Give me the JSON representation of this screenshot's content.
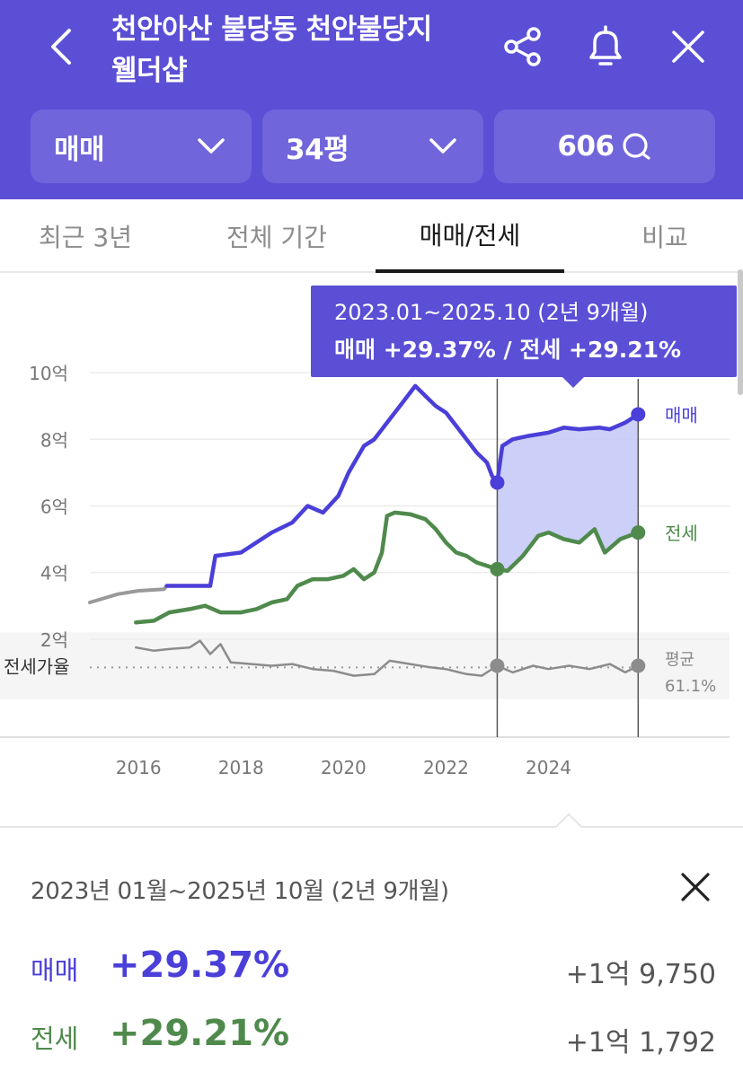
{
  "header": {
    "title_line1": "천안아산 불당동 천안불당지",
    "title_line2": "웰더샵",
    "back_icon": "chevron-left-icon",
    "share_icon": "share-icon",
    "bell_icon": "bell-icon",
    "close_icon": "close-icon",
    "filters": {
      "trade_type": "매매",
      "size": "34평",
      "comments": "606"
    }
  },
  "tabs": [
    {
      "label": "최근 3년"
    },
    {
      "label": "전체 기간"
    },
    {
      "label": "매매/전세",
      "active": true
    },
    {
      "label": "비교"
    }
  ],
  "tooltip": {
    "range": "2023.01~2025.10 (2년 9개월)",
    "detail": "매매 +29.37%  /  전세 +29.21%"
  },
  "colors": {
    "brand": "#5b4fd6",
    "sale_line": "#4a3fd8",
    "jeonse_line": "#4f8a4c",
    "ratio_line": "#8c8c8c",
    "highlight_fill": "#c7cbf7"
  },
  "chart_data": {
    "type": "line",
    "y_unit": "억",
    "y_ticks": [
      "10억",
      "8억",
      "6억",
      "4억",
      "2억"
    ],
    "x_ticks": [
      "2016",
      "2018",
      "2020",
      "2022",
      "2024"
    ],
    "ylim": [
      0,
      11
    ],
    "xlim": [
      2015.05,
      2025.85
    ],
    "highlight_range": [
      2023.0,
      2025.75
    ],
    "series": [
      {
        "name": "매매",
        "label": "매매",
        "points": [
          [
            2015.05,
            3.1
          ],
          [
            2015.6,
            3.35
          ],
          [
            2016.0,
            3.45
          ],
          [
            2016.5,
            3.5
          ],
          [
            2016.55,
            3.6
          ],
          [
            2017.0,
            3.6
          ],
          [
            2017.4,
            3.6
          ],
          [
            2017.5,
            4.5
          ],
          [
            2018.0,
            4.6
          ],
          [
            2018.3,
            4.9
          ],
          [
            2018.6,
            5.2
          ],
          [
            2019.0,
            5.5
          ],
          [
            2019.3,
            6.0
          ],
          [
            2019.6,
            5.8
          ],
          [
            2019.9,
            6.3
          ],
          [
            2020.1,
            7.0
          ],
          [
            2020.4,
            7.8
          ],
          [
            2020.6,
            8.0
          ],
          [
            2020.9,
            8.6
          ],
          [
            2021.1,
            9.0
          ],
          [
            2021.4,
            9.6
          ],
          [
            2021.6,
            9.3
          ],
          [
            2021.8,
            9.0
          ],
          [
            2022.0,
            8.8
          ],
          [
            2022.2,
            8.4
          ],
          [
            2022.4,
            8.0
          ],
          [
            2022.6,
            7.6
          ],
          [
            2022.8,
            7.3
          ],
          [
            2022.9,
            6.9
          ],
          [
            2023.0,
            6.7
          ],
          [
            2023.1,
            7.8
          ],
          [
            2023.3,
            8.0
          ],
          [
            2023.6,
            8.1
          ],
          [
            2024.0,
            8.2
          ],
          [
            2024.3,
            8.35
          ],
          [
            2024.6,
            8.3
          ],
          [
            2025.0,
            8.35
          ],
          [
            2025.2,
            8.3
          ],
          [
            2025.5,
            8.5
          ],
          [
            2025.75,
            8.75
          ]
        ]
      },
      {
        "name": "전세",
        "label": "전세",
        "points": [
          [
            2015.95,
            2.5
          ],
          [
            2016.3,
            2.55
          ],
          [
            2016.6,
            2.8
          ],
          [
            2017.0,
            2.9
          ],
          [
            2017.3,
            3.0
          ],
          [
            2017.6,
            2.8
          ],
          [
            2018.0,
            2.8
          ],
          [
            2018.3,
            2.9
          ],
          [
            2018.6,
            3.1
          ],
          [
            2018.9,
            3.2
          ],
          [
            2019.1,
            3.6
          ],
          [
            2019.4,
            3.8
          ],
          [
            2019.7,
            3.8
          ],
          [
            2020.0,
            3.9
          ],
          [
            2020.2,
            4.1
          ],
          [
            2020.4,
            3.8
          ],
          [
            2020.6,
            4.0
          ],
          [
            2020.75,
            4.6
          ],
          [
            2020.85,
            5.7
          ],
          [
            2021.0,
            5.8
          ],
          [
            2021.3,
            5.75
          ],
          [
            2021.6,
            5.6
          ],
          [
            2021.8,
            5.3
          ],
          [
            2022.0,
            4.9
          ],
          [
            2022.2,
            4.6
          ],
          [
            2022.4,
            4.5
          ],
          [
            2022.6,
            4.3
          ],
          [
            2022.8,
            4.2
          ],
          [
            2023.0,
            4.1
          ],
          [
            2023.2,
            4.05
          ],
          [
            2023.5,
            4.5
          ],
          [
            2023.8,
            5.1
          ],
          [
            2024.0,
            5.2
          ],
          [
            2024.3,
            5.0
          ],
          [
            2024.6,
            4.9
          ],
          [
            2024.9,
            5.3
          ],
          [
            2025.1,
            4.6
          ],
          [
            2025.4,
            5.0
          ],
          [
            2025.75,
            5.2
          ]
        ]
      }
    ],
    "ratio": {
      "label": "전세가율",
      "average_label": "평균",
      "average_value": "61.1%",
      "points": [
        [
          2015.95,
          1.75
        ],
        [
          2016.3,
          1.65
        ],
        [
          2016.6,
          1.7
        ],
        [
          2017.0,
          1.75
        ],
        [
          2017.2,
          1.95
        ],
        [
          2017.4,
          1.55
        ],
        [
          2017.6,
          1.85
        ],
        [
          2017.8,
          1.3
        ],
        [
          2018.2,
          1.25
        ],
        [
          2018.6,
          1.2
        ],
        [
          2019.0,
          1.25
        ],
        [
          2019.4,
          1.1
        ],
        [
          2019.8,
          1.05
        ],
        [
          2020.2,
          0.9
        ],
        [
          2020.6,
          0.95
        ],
        [
          2020.9,
          1.35
        ],
        [
          2021.3,
          1.25
        ],
        [
          2021.7,
          1.15
        ],
        [
          2022.0,
          1.1
        ],
        [
          2022.4,
          0.95
        ],
        [
          2022.7,
          0.9
        ],
        [
          2023.0,
          1.2
        ],
        [
          2023.3,
          1.0
        ],
        [
          2023.7,
          1.2
        ],
        [
          2024.0,
          1.1
        ],
        [
          2024.4,
          1.2
        ],
        [
          2024.8,
          1.1
        ],
        [
          2025.2,
          1.25
        ],
        [
          2025.5,
          1.0
        ],
        [
          2025.75,
          1.2
        ]
      ]
    }
  },
  "summary": {
    "range": "2023년 01월~2025년 10월 (2년 9개월)",
    "close_icon": "close-icon",
    "sale_label": "매매",
    "sale_pct": "+29.37%",
    "sale_amt": "+1억 9,750",
    "jeonse_label": "전세",
    "jeonse_pct": "+29.21%",
    "jeonse_amt": "+1억 1,792"
  }
}
